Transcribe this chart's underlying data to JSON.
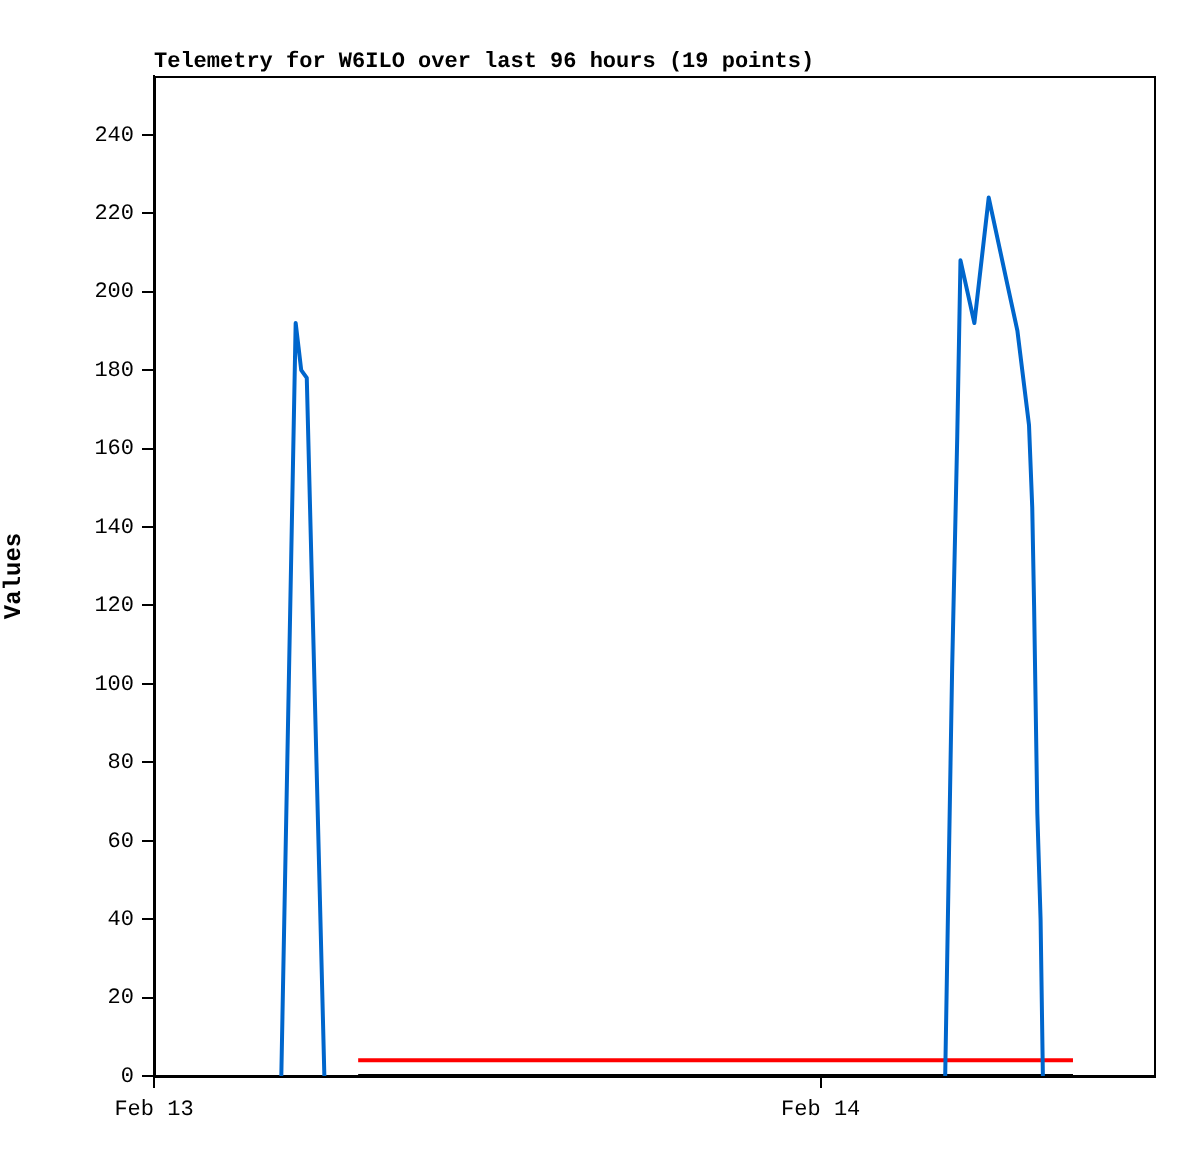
{
  "chart_data": {
    "type": "line",
    "title": "Telemetry for W6ILO over last 96 hours (19 points)",
    "ylabel": "Values",
    "xlim": [
      "--02-13T00:00",
      "--02-14T12:00"
    ],
    "xticks": [
      {
        "value": "--02-13",
        "label": "Feb 13"
      },
      {
        "value": "--02-14",
        "label": "Feb 14"
      }
    ],
    "ylim": [
      0,
      255
    ],
    "yticks": [
      0,
      20,
      40,
      60,
      80,
      100,
      120,
      140,
      160,
      180,
      200,
      220,
      240
    ],
    "grid": false,
    "legend": false,
    "marker": "none",
    "line_style": "solid",
    "series": [
      {
        "color": "#0066cc",
        "x": [
          "--02-13T04:35",
          "--02-13T05:06",
          "--02-13T05:12",
          "--02-13T05:18",
          "--02-13T05:30",
          "--02-13T06:08",
          null,
          "--02-14T04:29",
          "--02-14T04:44",
          "--02-14T04:55",
          "--02-14T05:02",
          "--02-14T05:32",
          "--02-14T06:03",
          "--02-14T06:43",
          "--02-14T07:05",
          "--02-14T07:30",
          "--02-14T07:37",
          "--02-14T07:41",
          "--02-14T07:48",
          "--02-14T07:55",
          "--02-14T08:00"
        ],
        "values": [
          0,
          192,
          186,
          180,
          178,
          0,
          null,
          0,
          104,
          163,
          208,
          192,
          224,
          202,
          190,
          166,
          145,
          120,
          67,
          40,
          0
        ]
      },
      {
        "color": "#ff0000",
        "x": [
          "--02-13T07:21",
          "--02-14T09:05"
        ],
        "values": [
          4,
          4
        ]
      },
      {
        "color": "#000000",
        "x": [
          "--02-13T07:21",
          "--02-14T09:05"
        ],
        "values": [
          0,
          0
        ]
      }
    ]
  }
}
